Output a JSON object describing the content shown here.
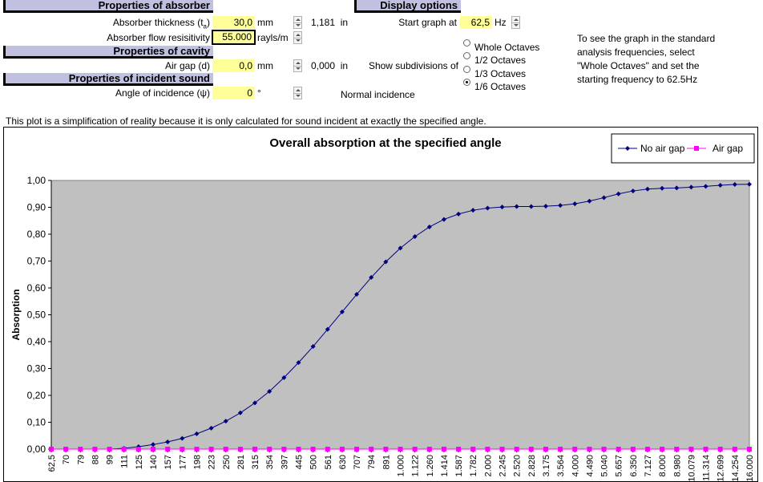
{
  "sections": {
    "absorber": "Properties of absorber",
    "display": "Display options",
    "cavity": "Properties of cavity",
    "incident": "Properties of incident sound"
  },
  "fields": {
    "thickness": {
      "label": "Absorber thickness (t",
      "sub": "a",
      "label_end": ")",
      "value": "30,0",
      "unit": "mm",
      "converted": "1,181",
      "conv_unit": "in"
    },
    "resistivity": {
      "label": "Absorber flow resisitivity",
      "value": "55.000",
      "unit": "rayls/m"
    },
    "air_gap": {
      "label": "Air gap (d)",
      "value": "0,0",
      "unit": "mm",
      "converted": "0,000",
      "conv_unit": "in"
    },
    "angle": {
      "label": "Angle of incidence (ψ)",
      "value": "0",
      "unit": "°",
      "note": "Normal incidence"
    },
    "start_graph": {
      "label": "Start graph at",
      "value": "62,5",
      "unit": "Hz"
    }
  },
  "subdivisions": {
    "label": "Show subdivisions of",
    "options": [
      "Whole Octaves",
      "1/2 Octaves",
      "1/3 Octaves",
      "1/6 Octaves"
    ],
    "selected": "1/6 Octaves"
  },
  "help_text": [
    "To see the graph in the standard",
    "analysis frequencies, select",
    "\"Whole Octaves\" and set the",
    "starting frequency to 62.5Hz"
  ],
  "disclaimer": "This plot is a simplification of reality because it is only calculated for sound incident at exactly the specified angle.",
  "colors": {
    "plot_area": "#c0c0c0",
    "series_no_gap": "#000080",
    "series_air_gap": "#ff00ff",
    "input_cell": "#ffff99",
    "section_header": "#c0c0e0"
  },
  "chart_data": {
    "type": "line",
    "title": "Overall absorption at the specified angle",
    "ylabel": "Absorption",
    "xlabel": "",
    "ylim": [
      0,
      1
    ],
    "yticks": [
      "0,00",
      "0,10",
      "0,20",
      "0,30",
      "0,40",
      "0,50",
      "0,60",
      "0,70",
      "0,80",
      "0,90",
      "1,00"
    ],
    "grid": true,
    "legend_position": "top-right",
    "categories": [
      "62,5",
      "70",
      "79",
      "88",
      "99",
      "111",
      "125",
      "140",
      "157",
      "177",
      "198",
      "223",
      "250",
      "281",
      "315",
      "354",
      "397",
      "445",
      "500",
      "561",
      "630",
      "707",
      "794",
      "891",
      "1.000",
      "1.122",
      "1.260",
      "1.414",
      "1.587",
      "1.782",
      "2.000",
      "2.245",
      "2.520",
      "2.828",
      "3.175",
      "3.564",
      "4.000",
      "4.490",
      "5.040",
      "5.657",
      "6.350",
      "7.127",
      "8.000",
      "8.980",
      "10.079",
      "11.314",
      "12.699",
      "14.254",
      "16.000"
    ],
    "series": [
      {
        "name": "No air gap",
        "marker": "diamond",
        "values": [
          0.0,
          0.0,
          0.0,
          0.0,
          0.0,
          0.003,
          0.009,
          0.017,
          0.027,
          0.04,
          0.057,
          0.078,
          0.104,
          0.135,
          0.172,
          0.215,
          0.266,
          0.322,
          0.382,
          0.446,
          0.511,
          0.576,
          0.639,
          0.697,
          0.748,
          0.791,
          0.827,
          0.855,
          0.875,
          0.889,
          0.897,
          0.901,
          0.903,
          0.903,
          0.904,
          0.907,
          0.913,
          0.923,
          0.936,
          0.95,
          0.961,
          0.968,
          0.971,
          0.972,
          0.975,
          0.978,
          0.982,
          0.985,
          0.986
        ]
      },
      {
        "name": "Air gap",
        "marker": "square",
        "values": [
          0,
          0,
          0,
          0,
          0,
          0,
          0,
          0,
          0,
          0,
          0,
          0,
          0,
          0,
          0,
          0,
          0,
          0,
          0,
          0,
          0,
          0,
          0,
          0,
          0,
          0,
          0,
          0,
          0,
          0,
          0,
          0,
          0,
          0,
          0,
          0,
          0,
          0,
          0,
          0,
          0,
          0,
          0,
          0,
          0,
          0,
          0,
          0,
          0
        ]
      }
    ]
  }
}
